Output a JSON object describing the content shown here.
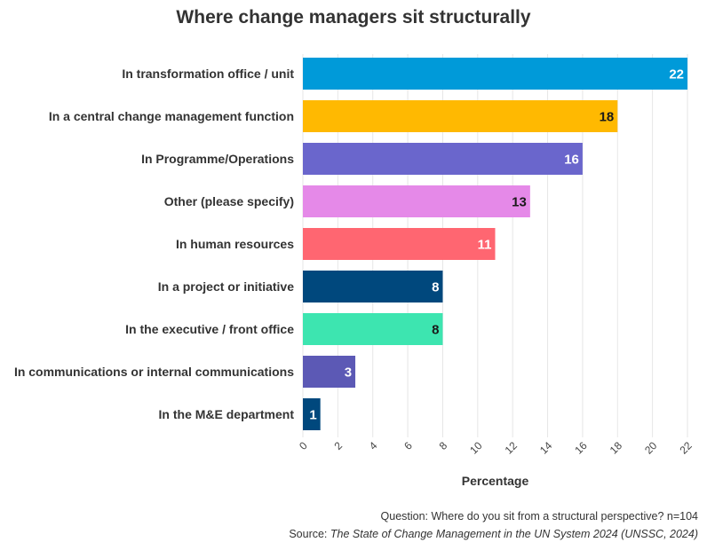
{
  "chart_data": {
    "type": "bar",
    "orientation": "horizontal",
    "title": "Where change managers sit structurally",
    "xlabel": "Percentage",
    "ylabel": "",
    "xlim": [
      0,
      22
    ],
    "ticks": [
      0,
      2,
      4,
      6,
      8,
      10,
      12,
      14,
      16,
      18,
      20,
      22
    ],
    "grid": true,
    "categories": [
      "In transformation office / unit",
      "In a central change management function",
      "In Programme/Operations",
      "Other (please specify)",
      "In human resources",
      "In a project or initiative",
      "In the executive / front office",
      "In communications or internal communications",
      "In the M&E department"
    ],
    "values": [
      22,
      18,
      16,
      13,
      11,
      8,
      8,
      3,
      1
    ],
    "colors": [
      "#009ad9",
      "#ffb901",
      "#6a66cc",
      "#e589e8",
      "#ff6671",
      "#00487d",
      "#3de5b0",
      "#5c59b5",
      "#00487d"
    ],
    "label_colors": [
      "#ffffff",
      "#1a1a1a",
      "#ffffff",
      "#1a1a1a",
      "#ffffff",
      "#ffffff",
      "#1a1a1a",
      "#ffffff",
      "#ffffff"
    ]
  },
  "notes": {
    "question": "Question: Where do you sit from a structural perspective? n=104",
    "source_prefix": "Source: ",
    "source_title": "The State of Change Management in the UN System 2024 (UNSSC, 2024)"
  }
}
